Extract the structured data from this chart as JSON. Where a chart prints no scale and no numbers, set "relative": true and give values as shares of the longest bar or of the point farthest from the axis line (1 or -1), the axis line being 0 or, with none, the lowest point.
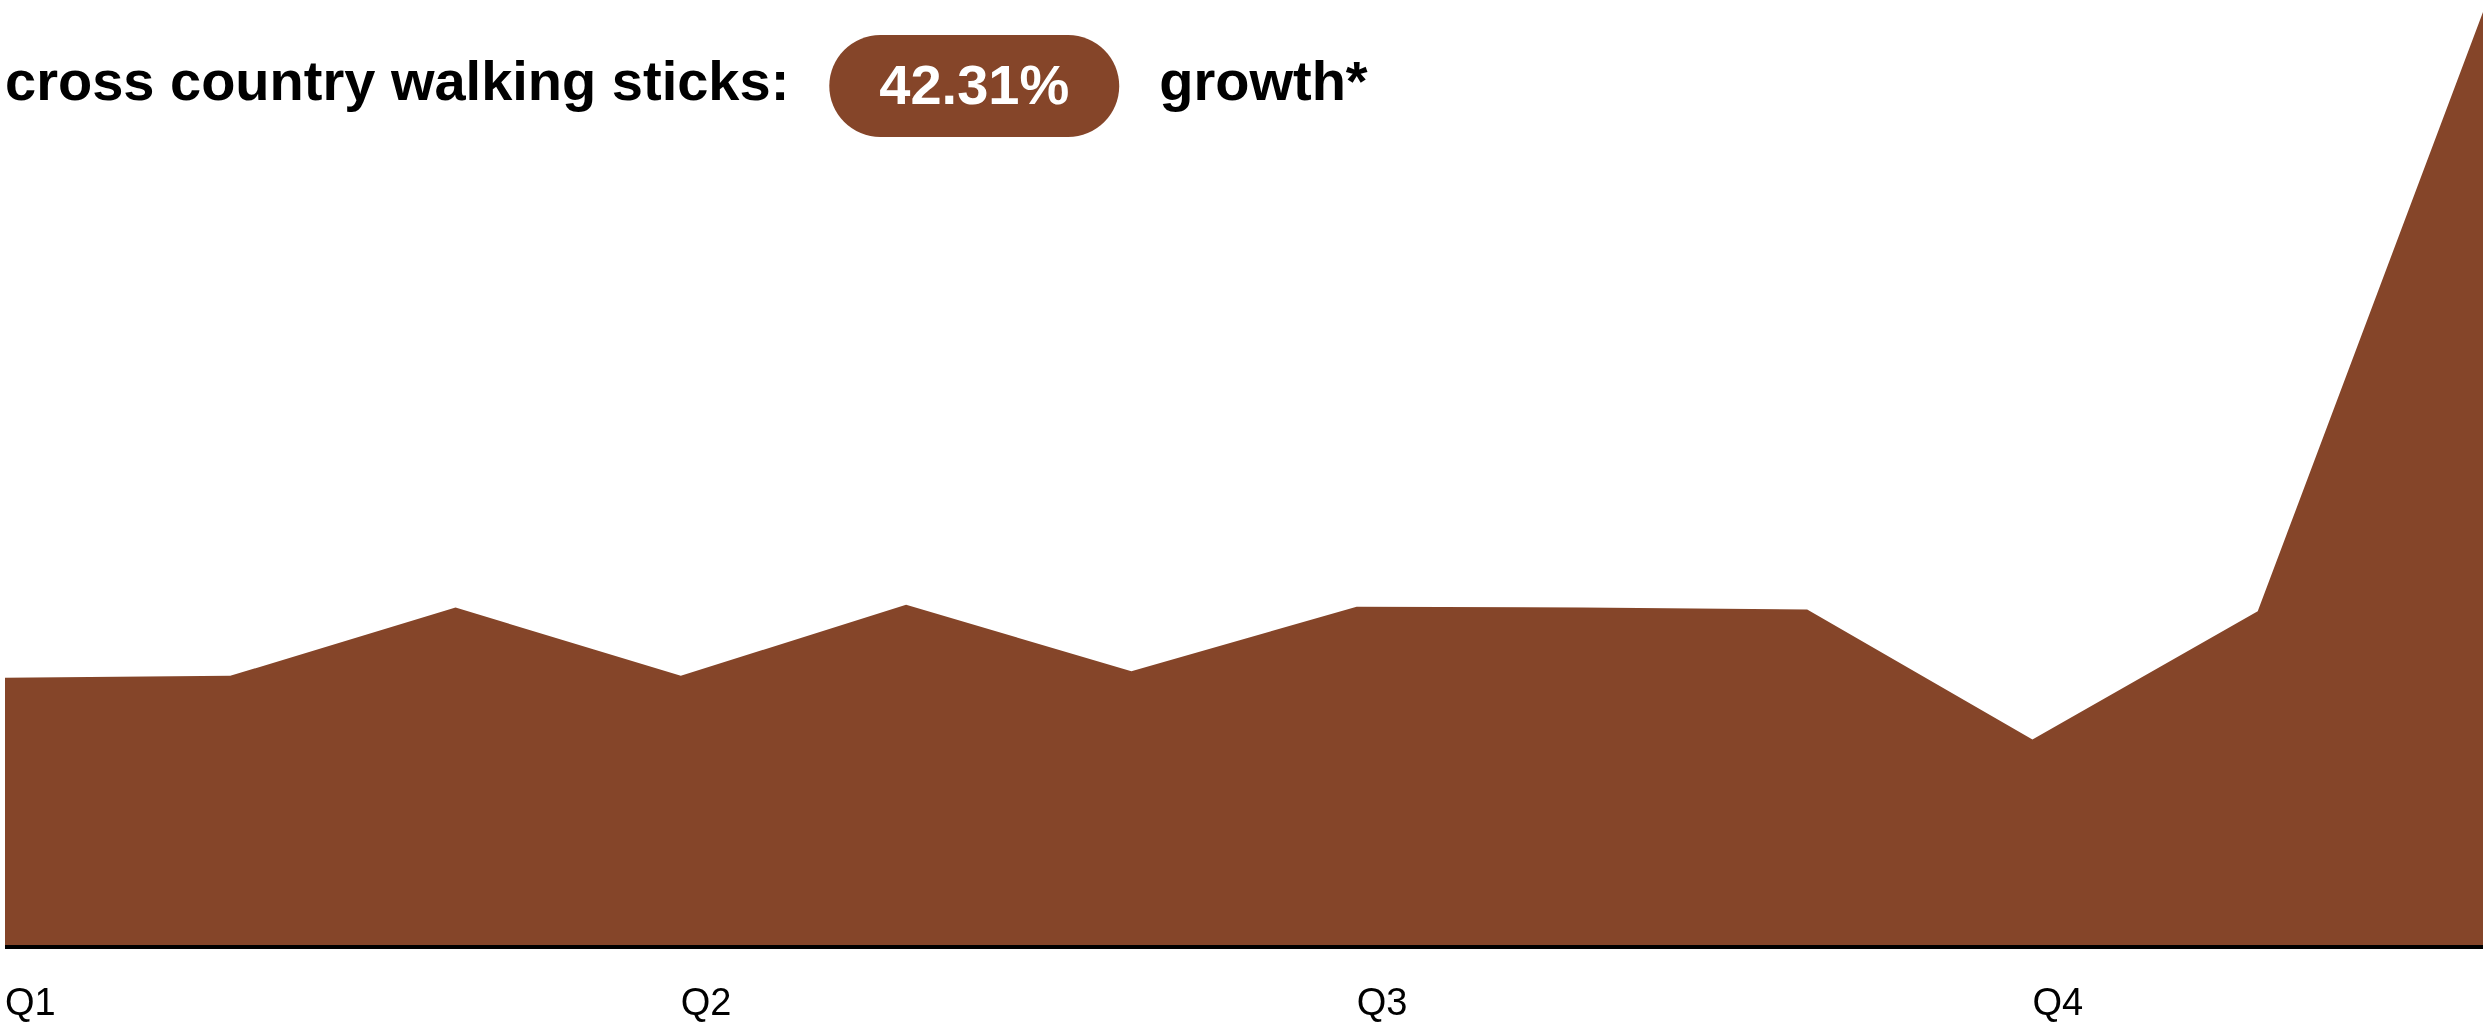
{
  "chart_data": {
    "type": "area",
    "title": "cross country walking sticks:",
    "annotations": [
      "42.31%",
      "growth*"
    ],
    "categories": [
      "Q1",
      null,
      null,
      "Q2",
      null,
      null,
      "Q3",
      null,
      null,
      "Q4",
      null,
      null
    ],
    "relative": true,
    "series": [
      {
        "color": "#854529",
        "values": [
          0.288,
          0.29,
          0.363,
          0.29,
          0.366,
          0.295,
          0.364,
          0.363,
          0.361,
          0.222,
          0.359,
          1
        ]
      }
    ]
  }
}
